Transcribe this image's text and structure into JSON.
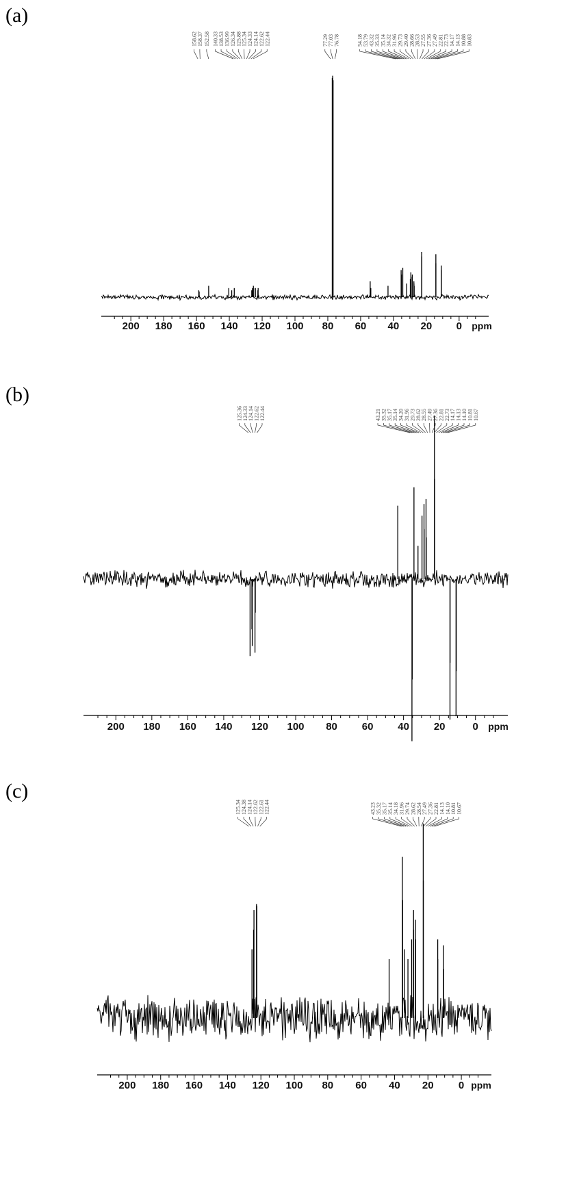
{
  "chart_data": [
    {
      "type": "line",
      "panel_label": "(a)",
      "xlim": [
        218,
        -18
      ],
      "x_reversed": true,
      "ticks": [
        200,
        180,
        160,
        140,
        120,
        100,
        80,
        60,
        40,
        20,
        0
      ],
      "x_unit": "ppm",
      "noise_level": 0.9,
      "noise_seed": 11,
      "y_range": [
        -10,
        100
      ],
      "peaks": [
        {
          "x": 158.62,
          "y": 3
        },
        {
          "x": 158.37,
          "y": 2.5
        },
        {
          "x": 152.58,
          "y": 5
        },
        {
          "x": 140.33,
          "y": 4
        },
        {
          "x": 138.53,
          "y": 3
        },
        {
          "x": 136.99,
          "y": 4
        },
        {
          "x": 126.34,
          "y": 3
        },
        {
          "x": 125.88,
          "y": 4
        },
        {
          "x": 125.34,
          "y": 5
        },
        {
          "x": 124.33,
          "y": 4
        },
        {
          "x": 124.14,
          "y": 4
        },
        {
          "x": 122.62,
          "y": 3
        },
        {
          "x": 122.44,
          "y": 4
        },
        {
          "x": 77.29,
          "y": 97
        },
        {
          "x": 77.03,
          "y": 98
        },
        {
          "x": 76.78,
          "y": 96
        },
        {
          "x": 54.18,
          "y": 7
        },
        {
          "x": 53.79,
          "y": 4
        },
        {
          "x": 43.32,
          "y": 5
        },
        {
          "x": 35.33,
          "y": 12
        },
        {
          "x": 35.14,
          "y": 10
        },
        {
          "x": 34.32,
          "y": 13
        },
        {
          "x": 31.96,
          "y": 6
        },
        {
          "x": 29.73,
          "y": 8
        },
        {
          "x": 29.4,
          "y": 11
        },
        {
          "x": 28.66,
          "y": 9
        },
        {
          "x": 28.53,
          "y": 10
        },
        {
          "x": 27.55,
          "y": 7
        },
        {
          "x": 27.36,
          "y": 5
        },
        {
          "x": 27.49,
          "y": 6
        },
        {
          "x": 22.81,
          "y": 20
        },
        {
          "x": 22.73,
          "y": 18
        },
        {
          "x": 14.17,
          "y": 19
        },
        {
          "x": 14.13,
          "y": 15
        },
        {
          "x": 10.88,
          "y": 14
        },
        {
          "x": 10.83,
          "y": 12
        }
      ],
      "peak_labels": [
        {
          "anchor": 158.5,
          "labels": [
            "158.62",
            "158.37"
          ]
        },
        {
          "anchor": 152.6,
          "labels": [
            "152.58"
          ]
        },
        {
          "anchor": 131.5,
          "labels": [
            "140.33",
            "138.53",
            "136.99",
            "126.34",
            "125.88",
            "125.34",
            "124.33",
            "124.14",
            "122.62",
            "122.44"
          ]
        },
        {
          "anchor": 77.0,
          "labels": [
            "77.29",
            "77.03",
            "76.78"
          ]
        },
        {
          "anchor": 26.0,
          "labels": [
            "54.18",
            "53.79",
            "43.32",
            "35.33",
            "35.14",
            "34.32",
            "31.96",
            "29.73",
            "29.40",
            "28.66",
            "28.53",
            "27.55",
            "27.36",
            "27.49",
            "22.81",
            "22.73",
            "14.17",
            "14.13",
            "10.88",
            "10.83"
          ]
        }
      ]
    },
    {
      "type": "line",
      "panel_label": "(b)",
      "xlim": [
        218,
        -18
      ],
      "x_reversed": true,
      "ticks": [
        200,
        180,
        160,
        140,
        120,
        100,
        80,
        60,
        40,
        20,
        0
      ],
      "x_unit": "ppm",
      "noise_level": 4,
      "noise_seed": 23,
      "y_range": [
        -100,
        100
      ],
      "peaks": [
        {
          "x": 125.36,
          "y": -46
        },
        {
          "x": 124.33,
          "y": -30
        },
        {
          "x": 124.14,
          "y": -40
        },
        {
          "x": 122.62,
          "y": -44
        },
        {
          "x": 122.44,
          "y": -20
        },
        {
          "x": 43.21,
          "y": 44
        },
        {
          "x": 35.32,
          "y": -97
        },
        {
          "x": 35.17,
          "y": -60
        },
        {
          "x": 34.2,
          "y": 55
        },
        {
          "x": 31.96,
          "y": 20
        },
        {
          "x": 29.73,
          "y": 38
        },
        {
          "x": 28.62,
          "y": 45
        },
        {
          "x": 28.55,
          "y": 30
        },
        {
          "x": 27.49,
          "y": 48
        },
        {
          "x": 27.36,
          "y": 25
        },
        {
          "x": 22.81,
          "y": 98
        },
        {
          "x": 22.73,
          "y": 60
        },
        {
          "x": 14.17,
          "y": -84
        },
        {
          "x": 14.13,
          "y": -50
        },
        {
          "x": 10.81,
          "y": -82
        },
        {
          "x": 10.67,
          "y": -55
        }
      ],
      "peak_labels": [
        {
          "anchor": 123.9,
          "labels": [
            "125.36",
            "124.33",
            "124.14",
            "122.62",
            "122.44"
          ]
        },
        {
          "anchor": 26.0,
          "labels": [
            "43.21",
            "35.32",
            "35.17",
            "35.14",
            "34.20",
            "31.96",
            "29.73",
            "28.62",
            "28.55",
            "27.49",
            "27.36",
            "22.81",
            "22.73",
            "14.17",
            "14.13",
            "14.10",
            "10.81",
            "10.67"
          ]
        }
      ]
    },
    {
      "type": "line",
      "panel_label": "(c)",
      "xlim": [
        218,
        -18
      ],
      "x_reversed": true,
      "ticks": [
        200,
        180,
        160,
        140,
        120,
        100,
        80,
        60,
        40,
        20,
        0
      ],
      "x_unit": "ppm",
      "noise_level": 9,
      "noise_seed": 37,
      "y_range": [
        -25,
        100
      ],
      "peaks": [
        {
          "x": 125.34,
          "y": 35
        },
        {
          "x": 124.38,
          "y": 45
        },
        {
          "x": 124.14,
          "y": 55
        },
        {
          "x": 122.62,
          "y": 58
        },
        {
          "x": 122.44,
          "y": 57
        },
        {
          "x": 43.23,
          "y": 30
        },
        {
          "x": 35.32,
          "y": 82
        },
        {
          "x": 35.17,
          "y": 60
        },
        {
          "x": 34.18,
          "y": 35
        },
        {
          "x": 31.96,
          "y": 30
        },
        {
          "x": 29.74,
          "y": 40
        },
        {
          "x": 28.62,
          "y": 55
        },
        {
          "x": 28.54,
          "y": 45
        },
        {
          "x": 27.49,
          "y": 50
        },
        {
          "x": 27.36,
          "y": 40
        },
        {
          "x": 22.81,
          "y": 99
        },
        {
          "x": 22.73,
          "y": 70
        },
        {
          "x": 14.13,
          "y": 40
        },
        {
          "x": 14.1,
          "y": 30
        },
        {
          "x": 10.81,
          "y": 37
        },
        {
          "x": 10.67,
          "y": 25
        }
      ],
      "peak_labels": [
        {
          "anchor": 123.9,
          "labels": [
            "125.34",
            "124.38",
            "124.14",
            "122.62",
            "122.61",
            "122.44"
          ]
        },
        {
          "anchor": 26.0,
          "labels": [
            "43.23",
            "35.32",
            "35.17",
            "35.14",
            "34.18",
            "31.96",
            "29.74",
            "28.62",
            "28.54",
            "27.49",
            "27.36",
            "22.81",
            "14.13",
            "14.10",
            "10.81",
            "10.67"
          ]
        }
      ]
    }
  ]
}
